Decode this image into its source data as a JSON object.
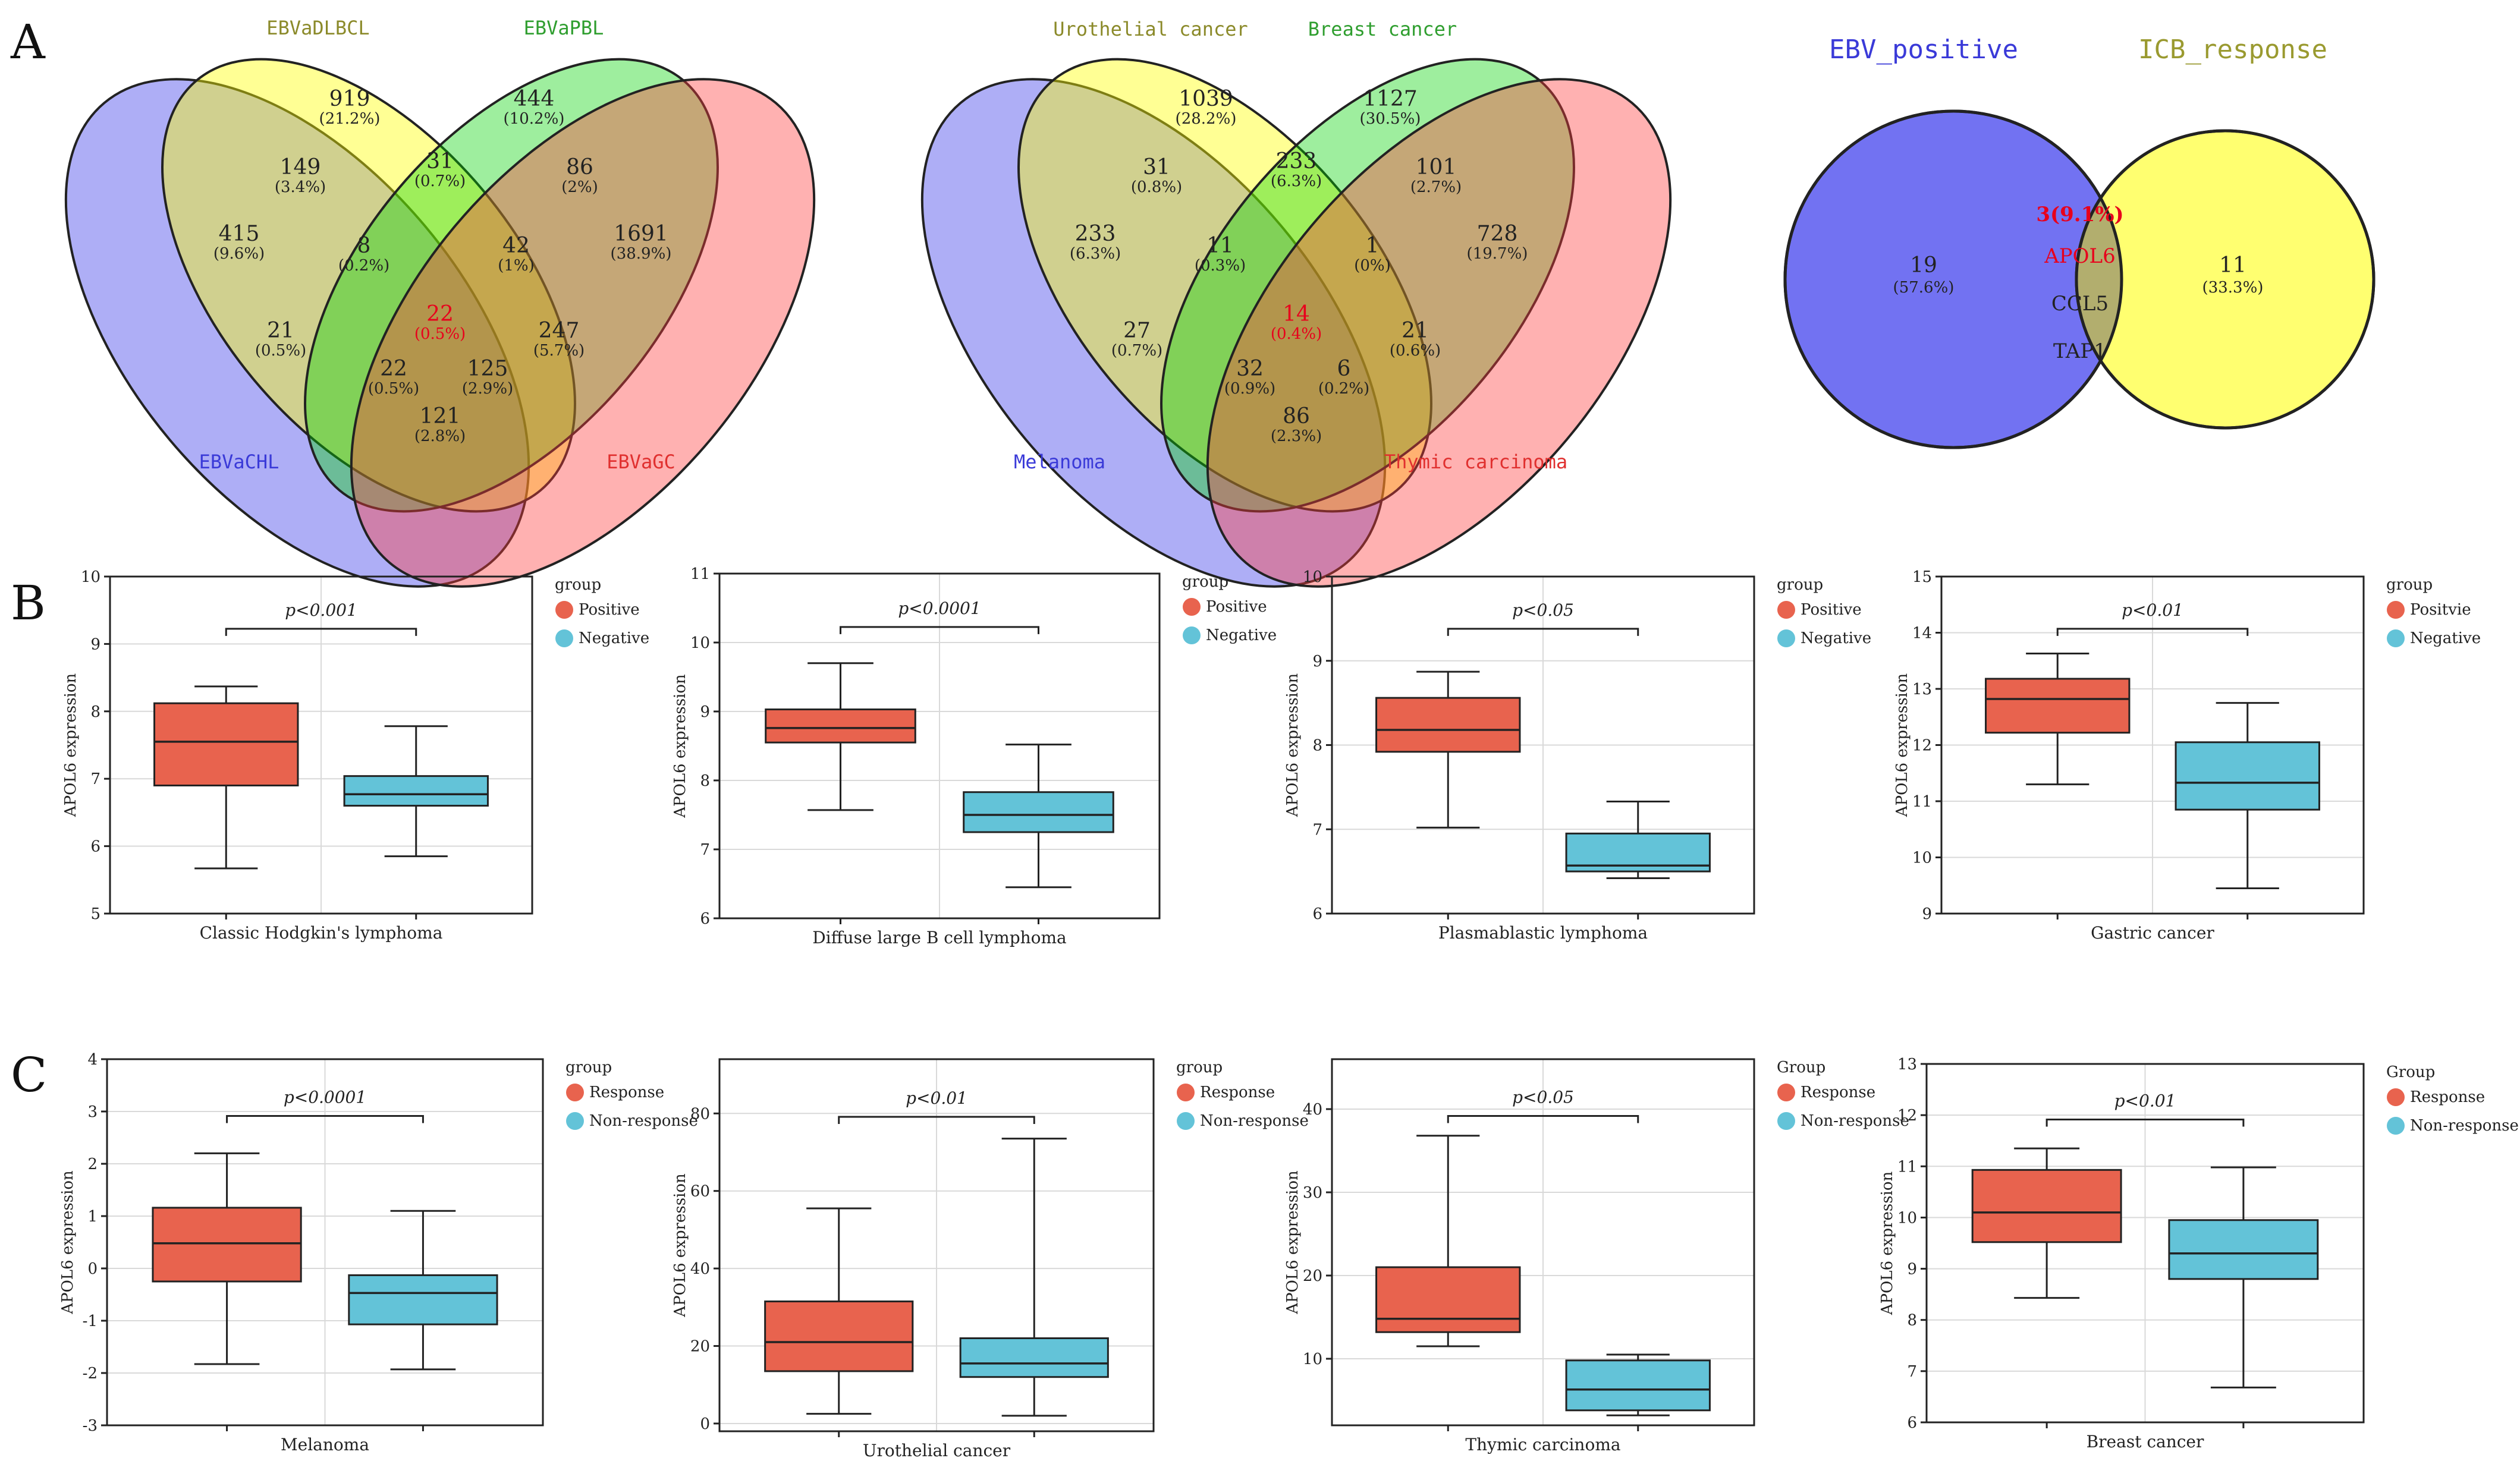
{
  "panels": {
    "A": "A",
    "B": "B",
    "C": "C"
  },
  "venn_a1": {
    "labels": {
      "dlbcl": "EBVaDLBCL",
      "pbl": "EBVaPBL",
      "chl": "EBVaCHL",
      "gc": "EBVaGC"
    },
    "label_colors": {
      "dlbcl": "#8b8a2a",
      "pbl": "#2f9e2f",
      "chl": "#3a3ad8",
      "gc": "#e0302f"
    },
    "cells": [
      {
        "n": "919",
        "p": "(21.2%)"
      },
      {
        "n": "444",
        "p": "(10.2%)"
      },
      {
        "n": "149",
        "p": "(3.4%)"
      },
      {
        "n": "31",
        "p": "(0.7%)"
      },
      {
        "n": "86",
        "p": "(2%)"
      },
      {
        "n": "415",
        "p": "(9.6%)"
      },
      {
        "n": "8",
        "p": "(0.2%)"
      },
      {
        "n": "42",
        "p": "(1%)"
      },
      {
        "n": "1691",
        "p": "(38.9%)"
      },
      {
        "n": "21",
        "p": "(0.5%)"
      },
      {
        "n": "22",
        "p": "(0.5%)"
      },
      {
        "n": "247",
        "p": "(5.7%)"
      },
      {
        "n": "22",
        "p": "(0.5%)"
      },
      {
        "n": "125",
        "p": "(2.9%)"
      },
      {
        "n": "121",
        "p": "(2.8%)"
      }
    ]
  },
  "venn_a2": {
    "labels": {
      "uro": "Urothelial cancer",
      "breast": "Breast cancer",
      "mel": "Melanoma",
      "thymic": "Thymic carcinoma"
    },
    "label_colors": {
      "uro": "#8b8a2a",
      "breast": "#2f9e2f",
      "mel": "#3a3ad8",
      "thymic": "#e0302f"
    },
    "cells": [
      {
        "n": "1039",
        "p": "(28.2%)"
      },
      {
        "n": "1127",
        "p": "(30.5%)"
      },
      {
        "n": "31",
        "p": "(0.8%)"
      },
      {
        "n": "233",
        "p": "(6.3%)"
      },
      {
        "n": "101",
        "p": "(2.7%)"
      },
      {
        "n": "233",
        "p": "(6.3%)"
      },
      {
        "n": "11",
        "p": "(0.3%)"
      },
      {
        "n": "1",
        "p": "(0%)"
      },
      {
        "n": "728",
        "p": "(19.7%)"
      },
      {
        "n": "27",
        "p": "(0.7%)"
      },
      {
        "n": "14",
        "p": "(0.4%)"
      },
      {
        "n": "21",
        "p": "(0.6%)"
      },
      {
        "n": "32",
        "p": "(0.9%)"
      },
      {
        "n": "6",
        "p": "(0.2%)"
      },
      {
        "n": "86",
        "p": "(2.3%)"
      }
    ]
  },
  "venn_a3": {
    "labels": {
      "left": "EBV_positive",
      "right": "ICB_response"
    },
    "label_colors": {
      "left": "#3a3ad8",
      "right": "#9a9a30"
    },
    "left_only": {
      "n": "19",
      "p": "(57.6%)"
    },
    "right_only": {
      "n": "11",
      "p": "(33.3%)"
    },
    "overlap": {
      "n": "3(9.1%)",
      "genes": [
        "APOL6",
        "CCL5",
        "TAP1"
      ]
    }
  },
  "colors": {
    "red_box": "#e8634e",
    "blue_box": "#63c3d8",
    "highlight": "#e8001c"
  },
  "chart_data": [
    {
      "type": "box",
      "panel": "B",
      "title": "",
      "xlabel": "Classic Hodgkin's lymphoma",
      "ylabel": "APOL6 expression",
      "ylim": [
        5,
        10
      ],
      "yticks": [
        5,
        6,
        7,
        8,
        9,
        10
      ],
      "pvalue": "p<0.001",
      "legend_title": "group",
      "series": [
        {
          "name": "Positive",
          "color": "#e8634e",
          "min": 5.67,
          "q1": 6.9,
          "median": 7.55,
          "q3": 8.12,
          "max": 8.37
        },
        {
          "name": "Negative",
          "color": "#63c3d8",
          "min": 5.85,
          "q1": 6.6,
          "median": 6.77,
          "q3": 7.04,
          "max": 7.78
        }
      ]
    },
    {
      "type": "box",
      "panel": "B",
      "title": "",
      "xlabel": "Diffuse large B cell lymphoma",
      "ylabel": "APOL6 expression",
      "ylim": [
        6,
        11
      ],
      "yticks": [
        6,
        7,
        8,
        9,
        10,
        11
      ],
      "pvalue": "p<0.0001",
      "legend_title": "group",
      "series": [
        {
          "name": "Positive",
          "color": "#e8634e",
          "min": 7.57,
          "q1": 8.55,
          "median": 8.76,
          "q3": 9.03,
          "max": 9.7
        },
        {
          "name": "Negative",
          "color": "#63c3d8",
          "min": 6.45,
          "q1": 7.25,
          "median": 7.5,
          "q3": 7.83,
          "max": 8.52
        }
      ]
    },
    {
      "type": "box",
      "panel": "B",
      "title": "",
      "xlabel": "Plasmablastic lymphoma",
      "ylabel": "APOL6 expression",
      "ylim": [
        6,
        10
      ],
      "yticks": [
        6,
        7,
        8,
        9,
        10
      ],
      "pvalue": "p<0.05",
      "legend_title": "group",
      "series": [
        {
          "name": "Positive",
          "color": "#e8634e",
          "min": 7.02,
          "q1": 7.92,
          "median": 8.18,
          "q3": 8.56,
          "max": 8.87
        },
        {
          "name": "Negative",
          "color": "#63c3d8",
          "min": 6.42,
          "q1": 6.5,
          "median": 6.57,
          "q3": 6.95,
          "max": 7.33
        }
      ]
    },
    {
      "type": "box",
      "panel": "B",
      "title": "",
      "xlabel": "Gastric cancer",
      "ylabel": "APOL6 expression",
      "ylim": [
        9,
        15
      ],
      "yticks": [
        9,
        10,
        11,
        12,
        13,
        14,
        15
      ],
      "pvalue": "p<0.01",
      "legend_title": "group",
      "series": [
        {
          "name": "Positvie",
          "color": "#e8634e",
          "min": 11.3,
          "q1": 12.22,
          "median": 12.82,
          "q3": 13.18,
          "max": 13.63
        },
        {
          "name": "Negative",
          "color": "#63c3d8",
          "min": 9.45,
          "q1": 10.85,
          "median": 11.33,
          "q3": 12.05,
          "max": 12.75
        }
      ]
    },
    {
      "type": "box",
      "panel": "C",
      "title": "",
      "xlabel": "Melanoma",
      "ylabel": "APOL6 expression",
      "ylim": [
        -3,
        4
      ],
      "yticks": [
        -3,
        -2,
        -1,
        0,
        1,
        2,
        3,
        4
      ],
      "pvalue": "p<0.0001",
      "legend_title": "group",
      "series": [
        {
          "name": "Response",
          "color": "#e8634e",
          "min": -1.83,
          "q1": -0.25,
          "median": 0.48,
          "q3": 1.16,
          "max": 2.2
        },
        {
          "name": "Non-response",
          "color": "#63c3d8",
          "min": -1.93,
          "q1": -1.07,
          "median": -0.47,
          "q3": -0.13,
          "max": 1.1
        }
      ]
    },
    {
      "type": "box",
      "panel": "C",
      "title": "",
      "xlabel": "Urothelial cancer",
      "ylabel": "APOL6 expression",
      "ylim": [
        -2,
        94
      ],
      "yticks": [
        0,
        20,
        40,
        60,
        80
      ],
      "pvalue": "p<0.01",
      "legend_title": "group",
      "series": [
        {
          "name": "Response",
          "color": "#e8634e",
          "min": 2.5,
          "q1": 13.5,
          "median": 21,
          "q3": 31.5,
          "max": 55.5
        },
        {
          "name": "Non-response",
          "color": "#63c3d8",
          "min": 2,
          "q1": 12,
          "median": 15.5,
          "q3": 22,
          "max": 73.5
        }
      ]
    },
    {
      "type": "box",
      "panel": "C",
      "title": "",
      "xlabel": "Thymic carcinoma",
      "ylabel": "APOL6 expression",
      "ylim": [
        2,
        46
      ],
      "yticks": [
        10,
        20,
        30,
        40
      ],
      "pvalue": "p<0.05",
      "legend_title": "Group",
      "series": [
        {
          "name": "Response",
          "color": "#e8634e",
          "min": 11.5,
          "q1": 13.2,
          "median": 14.8,
          "q3": 21,
          "max": 36.8
        },
        {
          "name": "Non-response",
          "color": "#63c3d8",
          "min": 3.2,
          "q1": 3.8,
          "median": 6.3,
          "q3": 9.8,
          "max": 10.5
        }
      ]
    },
    {
      "type": "box",
      "panel": "C",
      "title": "",
      "xlabel": "Breast cancer",
      "ylabel": "APOL6 expression",
      "ylim": [
        6,
        13
      ],
      "yticks": [
        6,
        7,
        8,
        9,
        10,
        11,
        12,
        13
      ],
      "pvalue": "p<0.01",
      "legend_title": "Group",
      "series": [
        {
          "name": "Response",
          "color": "#e8634e",
          "min": 8.43,
          "q1": 9.52,
          "median": 10.1,
          "q3": 10.93,
          "max": 11.35
        },
        {
          "name": "Non-response",
          "color": "#63c3d8",
          "min": 6.68,
          "q1": 8.8,
          "median": 9.3,
          "q3": 9.95,
          "max": 10.98
        }
      ]
    }
  ]
}
